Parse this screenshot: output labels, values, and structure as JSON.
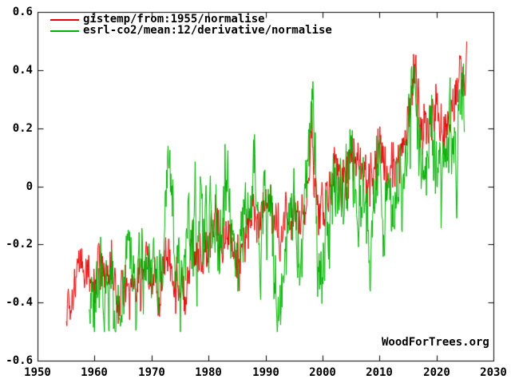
{
  "page": {
    "background": "#ffffff",
    "axis_color": "#000000",
    "text_color": "#000000"
  },
  "watermark": "WoodForTrees.org",
  "legend": {
    "position": "top-left",
    "items": [
      {
        "label": "gistemp/from:1955/normalise",
        "color": "#e60000"
      },
      {
        "label": "esrl-co2/mean:12/derivative/normalise",
        "color": "#00b000"
      }
    ]
  },
  "chart_data": {
    "type": "line",
    "title": "",
    "xlabel": "",
    "ylabel": "",
    "grid": false,
    "legend_position": "top-left",
    "x_axis": {
      "min": 1950,
      "max": 2030,
      "tick_values": [
        1950,
        1960,
        1970,
        1980,
        1990,
        2000,
        2010,
        2020,
        2030
      ],
      "tick_labels": [
        "1950",
        "1960",
        "1970",
        "1980",
        "1990",
        "2000",
        "2010",
        "2020",
        "2030"
      ]
    },
    "y_axis": {
      "min": -0.6,
      "max": 0.6,
      "tick_values": [
        0.6,
        0.4,
        0.2,
        0,
        -0.2,
        -0.4,
        -0.6
      ],
      "tick_labels": [
        "0.6",
        "0.4",
        "0.2",
        "0",
        "-0.2",
        "-0.4",
        "-0.6"
      ]
    },
    "series": [
      {
        "name": "gistemp/from:1955/normalise",
        "color": "#e60000",
        "start": 1955.0,
        "end": 2025.3,
        "points_per_year": 12,
        "value_range": [
          -0.5,
          0.5
        ],
        "noise_sigma": 0.05,
        "noise_phi": 0.35,
        "seed": 19551,
        "anchors": [
          [
            1955,
            -0.38
          ],
          [
            1956,
            -0.43
          ],
          [
            1957,
            -0.28
          ],
          [
            1958,
            -0.27
          ],
          [
            1959,
            -0.29
          ],
          [
            1960,
            -0.32
          ],
          [
            1961,
            -0.27
          ],
          [
            1962,
            -0.29
          ],
          [
            1963,
            -0.27
          ],
          [
            1964,
            -0.42
          ],
          [
            1965,
            -0.37
          ],
          [
            1966,
            -0.34
          ],
          [
            1967,
            -0.32
          ],
          [
            1968,
            -0.35
          ],
          [
            1969,
            -0.27
          ],
          [
            1970,
            -0.29
          ],
          [
            1971,
            -0.35
          ],
          [
            1972,
            -0.3
          ],
          [
            1973,
            -0.21
          ],
          [
            1974,
            -0.35
          ],
          [
            1975,
            -0.31
          ],
          [
            1976,
            -0.37
          ],
          [
            1977,
            -0.2
          ],
          [
            1978,
            -0.26
          ],
          [
            1979,
            -0.21
          ],
          [
            1980,
            -0.15
          ],
          [
            1981,
            -0.12
          ],
          [
            1982,
            -0.22
          ],
          [
            1983,
            -0.13
          ],
          [
            1984,
            -0.21
          ],
          [
            1985,
            -0.24
          ],
          [
            1986,
            -0.2
          ],
          [
            1987,
            -0.11
          ],
          [
            1988,
            -0.07
          ],
          [
            1989,
            -0.14
          ],
          [
            1990,
            -0.05
          ],
          [
            1991,
            -0.07
          ],
          [
            1992,
            -0.18
          ],
          [
            1993,
            -0.17
          ],
          [
            1994,
            -0.12
          ],
          [
            1995,
            -0.05
          ],
          [
            1996,
            -0.11
          ],
          [
            1997,
            -0.06
          ],
          [
            1998.1,
            0.16
          ],
          [
            1999,
            -0.09
          ],
          [
            2000,
            -0.08
          ],
          [
            2001,
            0.0
          ],
          [
            2002,
            0.07
          ],
          [
            2003,
            0.06
          ],
          [
            2004,
            0.0
          ],
          [
            2005,
            0.09
          ],
          [
            2006,
            0.07
          ],
          [
            2007,
            0.08
          ],
          [
            2008,
            0.01
          ],
          [
            2009,
            0.08
          ],
          [
            2010,
            0.11
          ],
          [
            2011,
            0.05
          ],
          [
            2012,
            0.07
          ],
          [
            2013,
            0.09
          ],
          [
            2014,
            0.13
          ],
          [
            2015,
            0.23
          ],
          [
            2016.2,
            0.38
          ],
          [
            2017,
            0.23
          ],
          [
            2018,
            0.19
          ],
          [
            2019,
            0.26
          ],
          [
            2020,
            0.28
          ],
          [
            2021,
            0.19
          ],
          [
            2022,
            0.21
          ],
          [
            2023.2,
            0.3
          ],
          [
            2024.0,
            0.46
          ],
          [
            2024.6,
            0.34
          ],
          [
            2025.3,
            0.41
          ]
        ]
      },
      {
        "name": "esrl-co2/mean:12/derivative/normalise",
        "color": "#00b000",
        "start": 1959.0,
        "end": 2024.9,
        "points_per_year": 12,
        "value_range": [
          -0.5,
          0.5
        ],
        "noise_sigma": 0.09,
        "noise_phi": 0.5,
        "seed": 19590,
        "anchors": [
          [
            1959,
            -0.3
          ],
          [
            1960,
            -0.34
          ],
          [
            1961,
            -0.3
          ],
          [
            1962,
            -0.37
          ],
          [
            1963,
            -0.27
          ],
          [
            1964,
            -0.46
          ],
          [
            1965,
            -0.36
          ],
          [
            1966,
            -0.24
          ],
          [
            1967,
            -0.34
          ],
          [
            1968,
            -0.28
          ],
          [
            1969,
            -0.22
          ],
          [
            1970,
            -0.3
          ],
          [
            1971,
            -0.36
          ],
          [
            1972,
            -0.22
          ],
          [
            1973.3,
            0.14
          ],
          [
            1974,
            -0.3
          ],
          [
            1975,
            -0.38
          ],
          [
            1976,
            -0.26
          ],
          [
            1977,
            -0.12
          ],
          [
            1978,
            -0.2
          ],
          [
            1979,
            -0.1
          ],
          [
            1980,
            -0.13
          ],
          [
            1981,
            -0.16
          ],
          [
            1982,
            -0.26
          ],
          [
            1983.2,
            0.1
          ],
          [
            1984,
            -0.22
          ],
          [
            1985,
            -0.27
          ],
          [
            1986,
            -0.18
          ],
          [
            1987,
            -0.02
          ],
          [
            1988,
            0.06
          ],
          [
            1989,
            -0.26
          ],
          [
            1990,
            -0.12
          ],
          [
            1991,
            -0.1
          ],
          [
            1992,
            -0.36
          ],
          [
            1993,
            -0.38
          ],
          [
            1994,
            -0.14
          ],
          [
            1995,
            -0.06
          ],
          [
            1996,
            -0.16
          ],
          [
            1997,
            -0.02
          ],
          [
            1998.2,
            0.32
          ],
          [
            1999,
            -0.18
          ],
          [
            2000,
            -0.24
          ],
          [
            2001,
            -0.1
          ],
          [
            2002,
            0.02
          ],
          [
            2003,
            0.06
          ],
          [
            2004,
            -0.06
          ],
          [
            2005,
            0.06
          ],
          [
            2006,
            -0.04
          ],
          [
            2007,
            0.02
          ],
          [
            2008,
            -0.14
          ],
          [
            2009,
            -0.04
          ],
          [
            2010,
            0.12
          ],
          [
            2011,
            -0.16
          ],
          [
            2012,
            0.0
          ],
          [
            2013,
            0.06
          ],
          [
            2014,
            0.02
          ],
          [
            2015,
            0.18
          ],
          [
            2016.1,
            0.4
          ],
          [
            2017,
            0.04
          ],
          [
            2018,
            0.0
          ],
          [
            2019,
            0.12
          ],
          [
            2020,
            0.1
          ],
          [
            2021,
            0.02
          ],
          [
            2022,
            0.06
          ],
          [
            2023,
            0.14
          ],
          [
            2023.6,
            0.1
          ],
          [
            2024.3,
            0.44
          ],
          [
            2024.9,
            0.27
          ]
        ]
      }
    ]
  }
}
